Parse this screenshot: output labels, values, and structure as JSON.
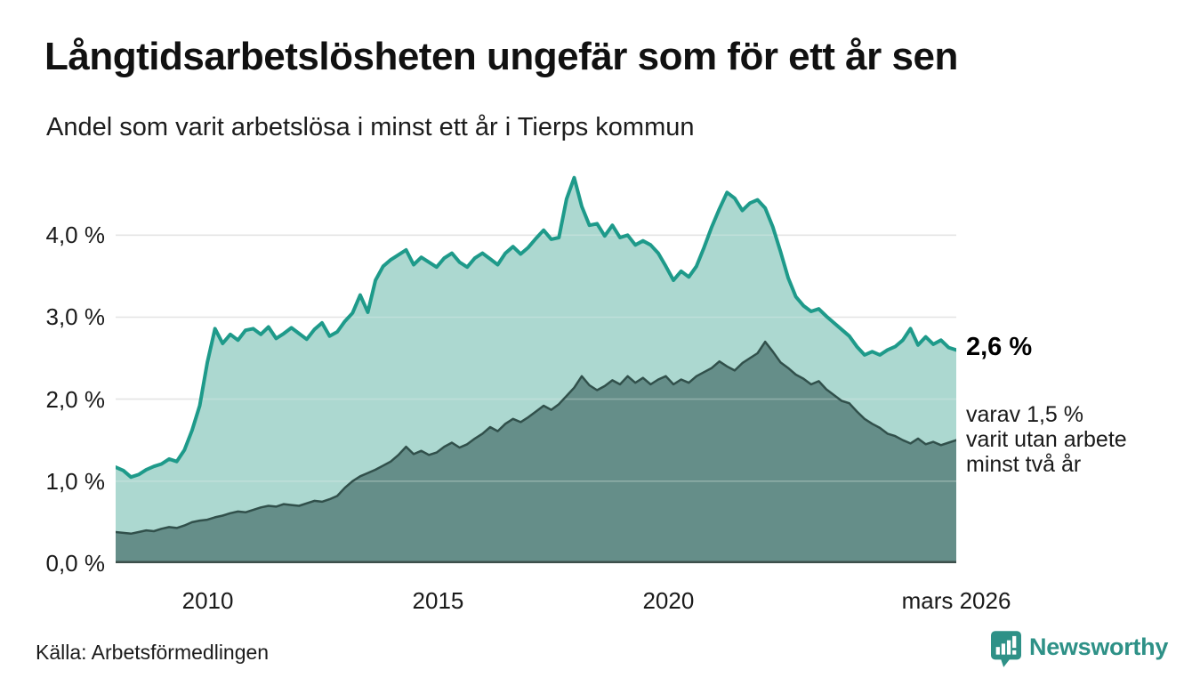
{
  "header": {
    "title": "Långtidsarbetslösheten ungefär som för ett år sen",
    "subtitle": "Andel som varit arbetslösa i minst ett år i Tierps kommun"
  },
  "annotations": {
    "latest_value": "2,6 %",
    "secondary": "varav 1,5 %\nvarit utan arbete\nminst två år"
  },
  "source": {
    "label": "Källa: Arbetsförmedlingen"
  },
  "logo": {
    "name": "Newsworthy",
    "color": "#2e9187"
  },
  "colors": {
    "teal_line": "#1e9a8a",
    "teal_fill": "#9ed1c8",
    "dark_line": "#31504b",
    "dark_fill": "#5e8882",
    "gridline": "#dcdcdc",
    "baseline": "#3d4f4b"
  },
  "chart_data": {
    "type": "area",
    "variant": "overlay",
    "title": "Långtidsarbetslösheten ungefär som för ett år sen",
    "xlabel": "",
    "ylabel": "",
    "x_start": 2008,
    "x_end": 2026.25,
    "ylim": [
      0,
      4.86
    ],
    "grid": true,
    "legend": "none",
    "y_ticks": [
      {
        "label": "0,0 %",
        "value": 0
      },
      {
        "label": "1,0 %",
        "value": 1
      },
      {
        "label": "2,0 %",
        "value": 2
      },
      {
        "label": "3,0 %",
        "value": 3
      },
      {
        "label": "4,0 %",
        "value": 4
      }
    ],
    "x_ticks": [
      {
        "label": "2010",
        "year": 2010
      },
      {
        "label": "2015",
        "year": 2015
      },
      {
        "label": "2020",
        "year": 2020
      },
      {
        "label": "mars 2026",
        "year": 2026.25
      }
    ],
    "series": [
      {
        "name": "arbetslösa minst ett år",
        "color": "#1e9a8a",
        "fill": "#9ed1c8",
        "fill_opacity": 0.85,
        "line_width": 4,
        "values": [
          1.17,
          1.13,
          1.05,
          1.08,
          1.14,
          1.18,
          1.21,
          1.27,
          1.24,
          1.38,
          1.62,
          1.92,
          2.45,
          2.86,
          2.68,
          2.79,
          2.72,
          2.84,
          2.86,
          2.79,
          2.88,
          2.74,
          2.8,
          2.87,
          2.8,
          2.73,
          2.85,
          2.93,
          2.77,
          2.82,
          2.95,
          3.05,
          3.27,
          3.06,
          3.45,
          3.62,
          3.7,
          3.76,
          3.82,
          3.64,
          3.73,
          3.67,
          3.61,
          3.72,
          3.78,
          3.67,
          3.61,
          3.72,
          3.78,
          3.71,
          3.64,
          3.78,
          3.86,
          3.77,
          3.85,
          3.96,
          4.06,
          3.95,
          3.97,
          4.44,
          4.7,
          4.35,
          4.12,
          4.14,
          3.99,
          4.12,
          3.97,
          4.0,
          3.88,
          3.93,
          3.88,
          3.78,
          3.62,
          3.45,
          3.56,
          3.49,
          3.62,
          3.85,
          4.1,
          4.32,
          4.52,
          4.45,
          4.3,
          4.39,
          4.43,
          4.33,
          4.1,
          3.8,
          3.48,
          3.25,
          3.14,
          3.07,
          3.1,
          3.01,
          2.93,
          2.85,
          2.77,
          2.64,
          2.54,
          2.58,
          2.54,
          2.6,
          2.64,
          2.72,
          2.86,
          2.66,
          2.76,
          2.67,
          2.72,
          2.63,
          2.6
        ]
      },
      {
        "name": "utan arbete minst två år",
        "color": "#31504b",
        "fill": "#5e8882",
        "fill_opacity": 0.92,
        "line_width": 2.5,
        "values": [
          0.38,
          0.37,
          0.36,
          0.38,
          0.4,
          0.39,
          0.42,
          0.44,
          0.43,
          0.46,
          0.5,
          0.52,
          0.53,
          0.56,
          0.58,
          0.61,
          0.63,
          0.62,
          0.65,
          0.68,
          0.7,
          0.69,
          0.72,
          0.71,
          0.7,
          0.73,
          0.76,
          0.75,
          0.78,
          0.82,
          0.92,
          1.0,
          1.06,
          1.1,
          1.14,
          1.19,
          1.24,
          1.32,
          1.42,
          1.33,
          1.37,
          1.32,
          1.35,
          1.42,
          1.47,
          1.41,
          1.45,
          1.52,
          1.58,
          1.66,
          1.61,
          1.7,
          1.76,
          1.72,
          1.78,
          1.85,
          1.92,
          1.87,
          1.94,
          2.04,
          2.14,
          2.28,
          2.17,
          2.11,
          2.16,
          2.23,
          2.18,
          2.28,
          2.2,
          2.26,
          2.18,
          2.24,
          2.28,
          2.18,
          2.24,
          2.2,
          2.28,
          2.33,
          2.38,
          2.46,
          2.4,
          2.35,
          2.44,
          2.5,
          2.56,
          2.7,
          2.58,
          2.45,
          2.38,
          2.3,
          2.25,
          2.18,
          2.22,
          2.12,
          2.05,
          1.98,
          1.95,
          1.85,
          1.76,
          1.7,
          1.65,
          1.58,
          1.55,
          1.5,
          1.46,
          1.52,
          1.45,
          1.48,
          1.44,
          1.47,
          1.5
        ]
      }
    ]
  }
}
